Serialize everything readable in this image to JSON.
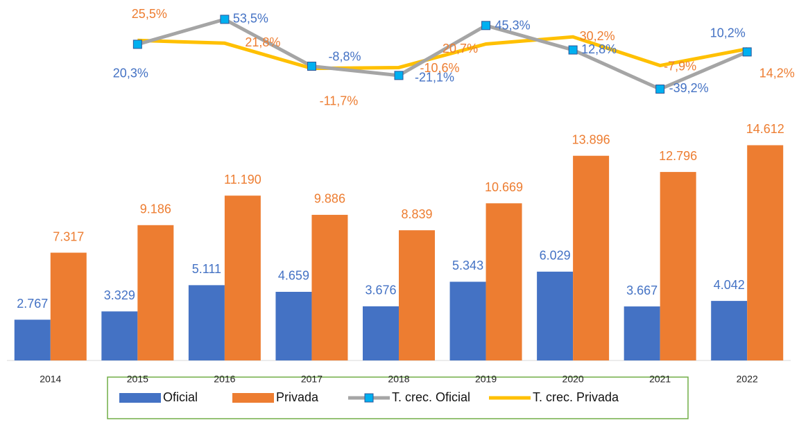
{
  "chart_data": {
    "type": "bar",
    "categories": [
      "2014",
      "2015",
      "2016",
      "2017",
      "2018",
      "2019",
      "2020",
      "2021",
      "2022"
    ],
    "ylim": [
      0,
      24000
    ],
    "y2lim": [
      -400,
      70
    ],
    "legend": "bottom",
    "series": [
      {
        "name": "Oficial",
        "type": "bar",
        "color": "#4472c4",
        "values": [
          2767,
          3329,
          5111,
          4659,
          3676,
          5343,
          6029,
          3667,
          4042
        ],
        "value_labels": [
          "2.767",
          "3.329",
          "5.111",
          "4.659",
          "3.676",
          "5.343",
          "6.029",
          "3.667",
          "4.042"
        ]
      },
      {
        "name": "Privada",
        "type": "bar",
        "color": "#ed7d31",
        "values": [
          7317,
          9186,
          11190,
          9886,
          8839,
          10669,
          13896,
          12796,
          14612
        ],
        "value_labels": [
          "7.317",
          "9.186",
          "11.190",
          "9.886",
          "8.839",
          "10.669",
          "13.896",
          "12.796",
          "14.612"
        ]
      },
      {
        "name": "T. crec. Oficial",
        "type": "line",
        "axis": "y2",
        "color": "#a5a5a5",
        "marker_color": "#00b0f0",
        "label_color": "#4472c4",
        "values": [
          null,
          20.3,
          53.5,
          -8.8,
          -21.1,
          45.3,
          12.8,
          -39.2,
          10.2
        ],
        "value_labels": [
          null,
          "20,3%",
          "53,5%",
          "-8,8%",
          "-21,1%",
          "45,3%",
          "12,8%",
          "-39,2%",
          "10,2%"
        ]
      },
      {
        "name": "T. crec. Privada",
        "type": "line",
        "axis": "y2",
        "color": "#ffc000",
        "label_color": "#ed7d31",
        "values": [
          null,
          25.5,
          21.8,
          -11.7,
          -10.6,
          20.7,
          30.2,
          -7.9,
          14.2
        ],
        "value_labels": [
          null,
          "25,5%",
          "21,8%",
          "-11,7%",
          "-10,6%",
          "20,7%",
          "30,2%",
          "-7,9%",
          "14,2%"
        ]
      }
    ]
  }
}
